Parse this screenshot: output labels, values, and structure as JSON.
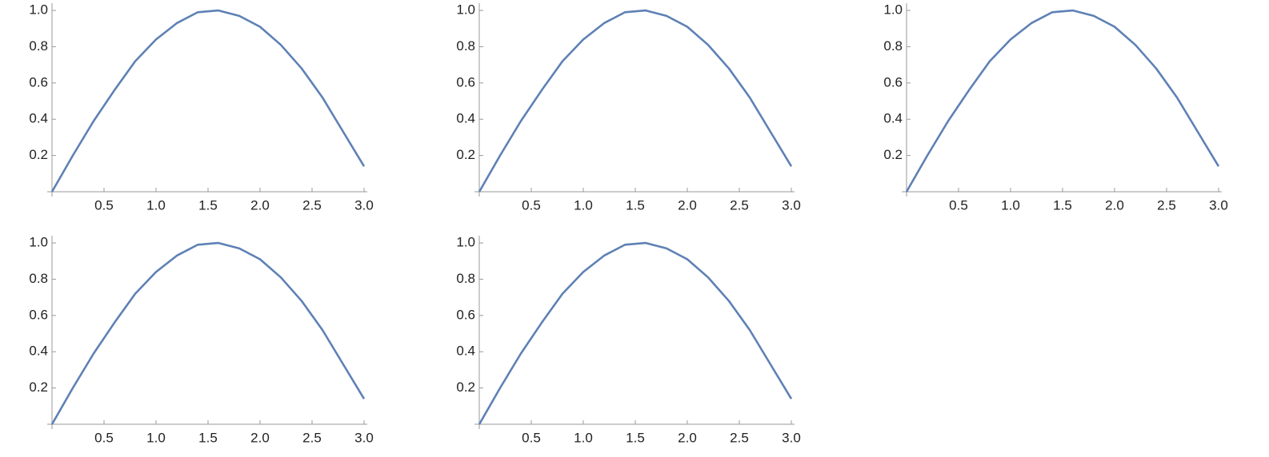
{
  "chart_data": [
    {
      "type": "line",
      "x": [
        0,
        0.2,
        0.4,
        0.6,
        0.8,
        1.0,
        1.2,
        1.4,
        1.6,
        1.8,
        2.0,
        2.2,
        2.4,
        2.6,
        2.8,
        3.0
      ],
      "series": [
        {
          "color": "#5e81b5",
          "values": [
            0,
            0.2,
            0.39,
            0.56,
            0.72,
            0.84,
            0.93,
            0.99,
            1.0,
            0.97,
            0.91,
            0.81,
            0.68,
            0.52,
            0.33,
            0.14
          ]
        }
      ],
      "xlim": [
        0,
        3
      ],
      "ylim": [
        0,
        1.04
      ],
      "xticks": [
        0.5,
        {
          "value": 1,
          "label": "1.0"
        },
        1.5,
        {
          "value": 2,
          "label": "2.0"
        },
        2.5,
        {
          "value": 3,
          "label": "3.0"
        }
      ],
      "yticks": [
        0.2,
        0.4,
        0.6,
        0.8,
        {
          "value": 1,
          "label": "1.0"
        }
      ]
    },
    {
      "type": "line",
      "x": [
        0,
        0.2,
        0.4,
        0.6,
        0.8,
        1.0,
        1.2,
        1.4,
        1.6,
        1.8,
        2.0,
        2.2,
        2.4,
        2.6,
        2.8,
        3.0
      ],
      "series": [
        {
          "color": "#5e81b5",
          "values": [
            0,
            0.2,
            0.39,
            0.56,
            0.72,
            0.84,
            0.93,
            0.99,
            1.0,
            0.97,
            0.91,
            0.81,
            0.68,
            0.52,
            0.33,
            0.14
          ]
        }
      ],
      "xlim": [
        0,
        3
      ],
      "ylim": [
        0,
        1.04
      ],
      "xticks": [
        0.5,
        {
          "value": 1,
          "label": "1.0"
        },
        1.5,
        {
          "value": 2,
          "label": "2.0"
        },
        2.5,
        {
          "value": 3,
          "label": "3.0"
        }
      ],
      "yticks": [
        0.2,
        0.4,
        0.6,
        0.8,
        {
          "value": 1,
          "label": "1.0"
        }
      ]
    },
    {
      "type": "line",
      "x": [
        0,
        0.2,
        0.4,
        0.6,
        0.8,
        1.0,
        1.2,
        1.4,
        1.6,
        1.8,
        2.0,
        2.2,
        2.4,
        2.6,
        2.8,
        3.0
      ],
      "series": [
        {
          "color": "#5e81b5",
          "values": [
            0,
            0.2,
            0.39,
            0.56,
            0.72,
            0.84,
            0.93,
            0.99,
            1.0,
            0.97,
            0.91,
            0.81,
            0.68,
            0.52,
            0.33,
            0.14
          ]
        }
      ],
      "xlim": [
        0,
        3
      ],
      "ylim": [
        0,
        1.04
      ],
      "xticks": [
        0.5,
        {
          "value": 1,
          "label": "1.0"
        },
        1.5,
        {
          "value": 2,
          "label": "2.0"
        },
        2.5,
        {
          "value": 3,
          "label": "3.0"
        }
      ],
      "yticks": [
        0.2,
        0.4,
        0.6,
        0.8,
        {
          "value": 1,
          "label": "1.0"
        }
      ]
    },
    {
      "type": "line",
      "x": [
        0,
        0.2,
        0.4,
        0.6,
        0.8,
        1.0,
        1.2,
        1.4,
        1.6,
        1.8,
        2.0,
        2.2,
        2.4,
        2.6,
        2.8,
        3.0
      ],
      "series": [
        {
          "color": "#5e81b5",
          "values": [
            0,
            0.2,
            0.39,
            0.56,
            0.72,
            0.84,
            0.93,
            0.99,
            1.0,
            0.97,
            0.91,
            0.81,
            0.68,
            0.52,
            0.33,
            0.14
          ]
        }
      ],
      "xlim": [
        0,
        3
      ],
      "ylim": [
        0,
        1.04
      ],
      "xticks": [
        0.5,
        {
          "value": 1,
          "label": "1.0"
        },
        1.5,
        {
          "value": 2,
          "label": "2.0"
        },
        2.5,
        {
          "value": 3,
          "label": "3.0"
        }
      ],
      "yticks": [
        0.2,
        0.4,
        0.6,
        0.8,
        {
          "value": 1,
          "label": "1.0"
        }
      ]
    },
    {
      "type": "line",
      "x": [
        0,
        0.2,
        0.4,
        0.6,
        0.8,
        1.0,
        1.2,
        1.4,
        1.6,
        1.8,
        2.0,
        2.2,
        2.4,
        2.6,
        2.8,
        3.0
      ],
      "series": [
        {
          "color": "#5e81b5",
          "values": [
            0,
            0.2,
            0.39,
            0.56,
            0.72,
            0.84,
            0.93,
            0.99,
            1.0,
            0.97,
            0.91,
            0.81,
            0.68,
            0.52,
            0.33,
            0.14
          ]
        }
      ],
      "xlim": [
        0,
        3
      ],
      "ylim": [
        0,
        1.04
      ],
      "xticks": [
        0.5,
        {
          "value": 1,
          "label": "1.0"
        },
        1.5,
        {
          "value": 2,
          "label": "2.0"
        },
        2.5,
        {
          "value": 3,
          "label": "3.0"
        }
      ],
      "yticks": [
        0.2,
        0.4,
        0.6,
        0.8,
        {
          "value": 1,
          "label": "1.0"
        }
      ]
    }
  ]
}
